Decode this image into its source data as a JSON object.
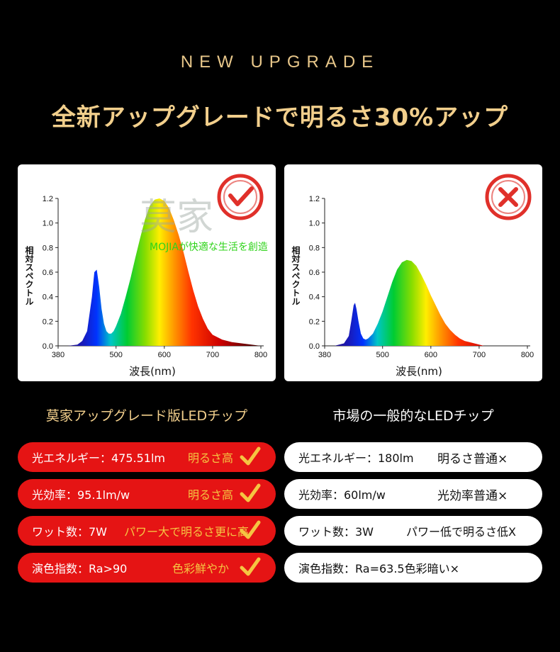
{
  "header": {
    "upgrade_label": "NEW UPGRADE",
    "title": "全新アップグレードで明るさ30%アップ"
  },
  "watermark": {
    "text": "莫家",
    "slogan": "MOJIAが快適な生活を創造"
  },
  "chart_data": [
    {
      "type": "area",
      "panel": "left",
      "verdict": "good",
      "verdict_icon": "check-circle-icon",
      "verdict_color": "#e0302a",
      "xlabel": "波長(nm)",
      "ylabel": "相対スペクトル",
      "xlim": [
        380,
        800
      ],
      "ylim": [
        0,
        1.2
      ],
      "x_ticks": [
        "380",
        "500",
        "600",
        "700",
        "800"
      ],
      "y_ticks": [
        "0.0",
        "0.2",
        "0.4",
        "0.6",
        "0.8",
        "1.0",
        "1.2"
      ],
      "x": [
        380,
        400,
        420,
        430,
        440,
        450,
        455,
        460,
        465,
        470,
        475,
        480,
        485,
        490,
        495,
        500,
        510,
        520,
        530,
        540,
        550,
        560,
        570,
        580,
        590,
        600,
        610,
        620,
        630,
        640,
        650,
        660,
        670,
        680,
        690,
        700,
        720,
        740,
        760,
        780,
        800
      ],
      "y": [
        0.0,
        0.0,
        0.01,
        0.04,
        0.12,
        0.4,
        0.6,
        0.62,
        0.48,
        0.3,
        0.18,
        0.12,
        0.1,
        0.1,
        0.12,
        0.16,
        0.26,
        0.4,
        0.55,
        0.72,
        0.88,
        1.03,
        1.14,
        1.19,
        1.2,
        1.18,
        1.12,
        1.02,
        0.9,
        0.76,
        0.6,
        0.45,
        0.32,
        0.22,
        0.14,
        0.09,
        0.05,
        0.03,
        0.02,
        0.01,
        0.0
      ]
    },
    {
      "type": "area",
      "panel": "right",
      "verdict": "bad",
      "verdict_icon": "cross-circle-icon",
      "verdict_color": "#e0302a",
      "xlabel": "波長(nm)",
      "ylabel": "相対スペクトル",
      "xlim": [
        380,
        800
      ],
      "ylim": [
        0,
        1.2
      ],
      "x_ticks": [
        "380",
        "500",
        "600",
        "700",
        "800"
      ],
      "y_ticks": [
        "0.0",
        "0.2",
        "0.4",
        "0.6",
        "0.8",
        "1.0",
        "1.2"
      ],
      "x": [
        380,
        400,
        420,
        430,
        435,
        440,
        443,
        446,
        450,
        455,
        460,
        465,
        470,
        480,
        490,
        500,
        510,
        520,
        530,
        540,
        550,
        560,
        570,
        580,
        590,
        600,
        610,
        620,
        630,
        640,
        650,
        660,
        670,
        680,
        690,
        700,
        710
      ],
      "y": [
        0.0,
        0.0,
        0.02,
        0.08,
        0.2,
        0.33,
        0.35,
        0.3,
        0.2,
        0.1,
        0.06,
        0.05,
        0.06,
        0.1,
        0.18,
        0.28,
        0.4,
        0.52,
        0.62,
        0.68,
        0.7,
        0.69,
        0.65,
        0.58,
        0.5,
        0.41,
        0.33,
        0.25,
        0.18,
        0.13,
        0.09,
        0.06,
        0.04,
        0.03,
        0.02,
        0.01,
        0.0
      ]
    }
  ],
  "comparison": {
    "left_title": "莫家アップグレード版LEDチップ",
    "right_title": "市場の一般的なLEDチップ",
    "left_rows": [
      {
        "label": "光エネルギー：475.51lm",
        "note": "明るさ高"
      },
      {
        "label": "光効率：95.1lm/w",
        "note": "明るさ高"
      },
      {
        "label": "ワット数：7W",
        "note": "パワー大で明るさ更に高"
      },
      {
        "label": "演色指数：Ra>90",
        "note": "色彩鮮やか"
      }
    ],
    "right_rows": [
      {
        "label": "光エネルギー：180lm",
        "note": "明るさ普通×"
      },
      {
        "label": "光効率：60lm/w",
        "note": "光効率普通×"
      },
      {
        "label": "ワット数：3W",
        "note": "パワー低で明るさ低X"
      },
      {
        "label": "演色指数：Ra=63.5色彩暗い×",
        "note": ""
      }
    ]
  },
  "colors": {
    "accent_gold": "#f2cf8c",
    "good_row": "#e51414",
    "check": "#f5c542"
  }
}
